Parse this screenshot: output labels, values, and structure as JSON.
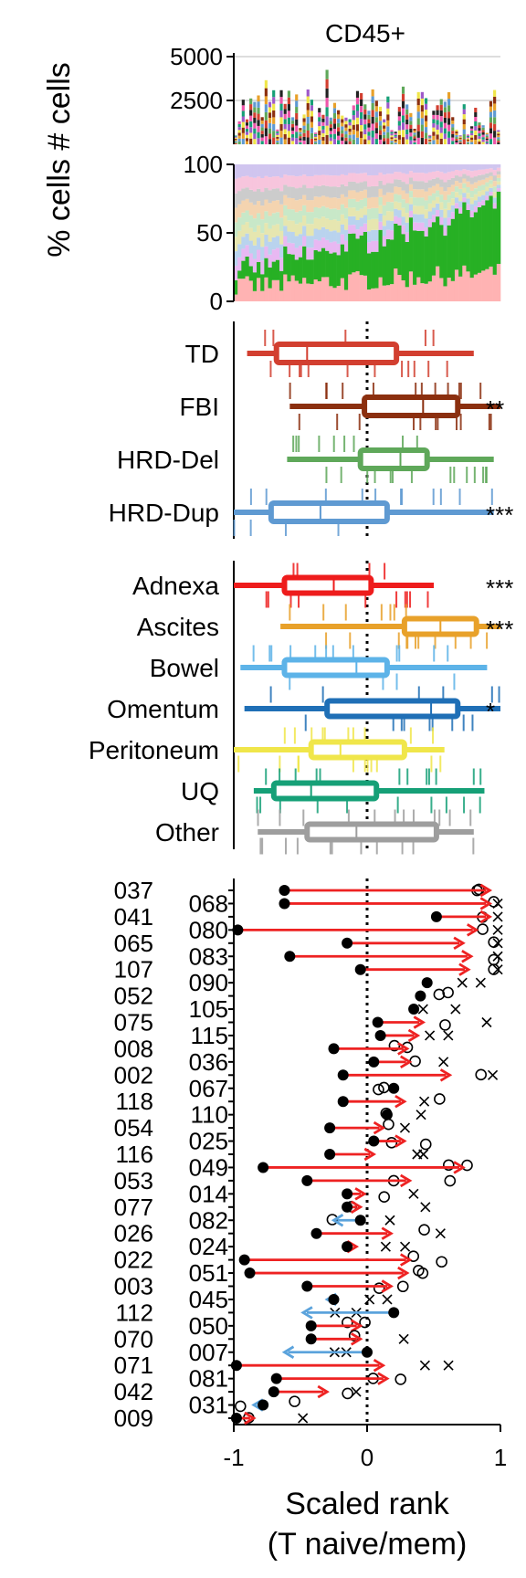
{
  "chart_data": {
    "type": "composite",
    "title": "CD45+",
    "ylabel_shared": "% cells # cells",
    "xlabel": "Scaled rank",
    "xlabel_sub": "(T naive/mem)",
    "x_ticks": [
      "-1",
      "0",
      "1"
    ],
    "xlim": [
      -1,
      1
    ],
    "counts_panel": {
      "type": "bar",
      "ylim": [
        0,
        5000
      ],
      "y_ticks": [
        "5000",
        "2500"
      ],
      "n_samples": 70
    },
    "percent_panel": {
      "type": "area",
      "ylim": [
        0,
        100
      ],
      "y_ticks": [
        "100",
        "50",
        "0"
      ],
      "n_samples": 70
    },
    "signature_panel": {
      "type": "box",
      "groups": [
        {
          "name": "TD",
          "color": "#d23f30",
          "whisker": [
            -0.9,
            0.8
          ],
          "q1": -0.68,
          "median": -0.45,
          "q3": 0.22,
          "sig": ""
        },
        {
          "name": "FBI",
          "color": "#8b2f0f",
          "whisker": [
            -0.58,
            1.0
          ],
          "q1": -0.02,
          "median": 0.42,
          "q3": 0.68,
          "sig": "**"
        },
        {
          "name": "HRD-Del",
          "color": "#5fa85a",
          "whisker": [
            -0.6,
            0.95
          ],
          "q1": -0.05,
          "median": 0.25,
          "q3": 0.45,
          "sig": ""
        },
        {
          "name": "HRD-Dup",
          "color": "#5f9ad2",
          "whisker": [
            -1.0,
            0.95
          ],
          "q1": -0.72,
          "median": -0.35,
          "q3": 0.15,
          "sig": "***"
        }
      ]
    },
    "site_panel": {
      "type": "box",
      "groups": [
        {
          "name": "Adnexa",
          "color": "#ee1c1c",
          "whisker": [
            -1.0,
            0.5
          ],
          "q1": -0.62,
          "median": -0.25,
          "q3": 0.03,
          "sig": "***"
        },
        {
          "name": "Ascites",
          "color": "#e8a12a",
          "whisker": [
            -0.65,
            1.0
          ],
          "q1": 0.28,
          "median": 0.55,
          "q3": 0.82,
          "sig": "***"
        },
        {
          "name": "Bowel",
          "color": "#5db3e8",
          "whisker": [
            -0.95,
            0.9
          ],
          "q1": -0.62,
          "median": -0.08,
          "q3": 0.15,
          "sig": ""
        },
        {
          "name": "Omentum",
          "color": "#1f6fb6",
          "whisker": [
            -0.92,
            1.0
          ],
          "q1": -0.3,
          "median": 0.48,
          "q3": 0.68,
          "sig": "*"
        },
        {
          "name": "Peritoneum",
          "color": "#f0e64a",
          "whisker": [
            -1.0,
            0.58
          ],
          "q1": -0.42,
          "median": -0.2,
          "q3": 0.28,
          "sig": ""
        },
        {
          "name": "UQ",
          "color": "#16a077",
          "whisker": [
            -0.85,
            0.88
          ],
          "q1": -0.7,
          "median": -0.42,
          "q3": 0.07,
          "sig": ""
        },
        {
          "name": "Other",
          "color": "#9e9e9e",
          "whisker": [
            -0.82,
            0.8
          ],
          "q1": -0.45,
          "median": -0.08,
          "q3": 0.52,
          "sig": ""
        }
      ]
    },
    "patient_panel": {
      "type": "dot-arrow",
      "patients": [
        {
          "id": "037",
          "start": -0.62,
          "end": 0.92
        },
        {
          "id": "068",
          "start": -0.62,
          "end": 0.92
        },
        {
          "id": "041",
          "start": 0.52,
          "end": 0.92
        },
        {
          "id": "080",
          "start": -0.97,
          "end": 0.82
        },
        {
          "id": "065",
          "start": -0.15,
          "end": 0.72
        },
        {
          "id": "083",
          "start": -0.58,
          "end": 0.78
        },
        {
          "id": "107",
          "start": -0.05,
          "end": 0.76
        },
        {
          "id": "090",
          "start": 0.45,
          "end": 0.45
        },
        {
          "id": "052",
          "start": 0.4,
          "end": 0.4
        },
        {
          "id": "105",
          "start": 0.35,
          "end": 0.35
        },
        {
          "id": "075",
          "start": 0.08,
          "end": 0.42
        },
        {
          "id": "115",
          "start": 0.1,
          "end": 0.38
        },
        {
          "id": "008",
          "start": -0.25,
          "end": 0.3
        },
        {
          "id": "036",
          "start": 0.05,
          "end": 0.32
        },
        {
          "id": "002",
          "start": -0.18,
          "end": 0.62
        },
        {
          "id": "067",
          "start": 0.2,
          "end": 0.2
        },
        {
          "id": "118",
          "start": -0.18,
          "end": 0.28
        },
        {
          "id": "110",
          "start": 0.15,
          "end": 0.15
        },
        {
          "id": "054",
          "start": -0.28,
          "end": 0.12
        },
        {
          "id": "025",
          "start": 0.05,
          "end": 0.28
        },
        {
          "id": "116",
          "start": -0.28,
          "end": 0.05
        },
        {
          "id": "049",
          "start": -0.78,
          "end": 0.72
        },
        {
          "id": "053",
          "start": -0.45,
          "end": 0.32
        },
        {
          "id": "014",
          "start": -0.15,
          "end": -0.02
        },
        {
          "id": "077",
          "start": -0.15,
          "end": -0.05
        },
        {
          "id": "082",
          "start": -0.05,
          "end": -0.25
        },
        {
          "id": "026",
          "start": -0.38,
          "end": 0.18
        },
        {
          "id": "024",
          "start": -0.15,
          "end": -0.08
        },
        {
          "id": "022",
          "start": -0.92,
          "end": 0.32
        },
        {
          "id": "051",
          "start": -0.88,
          "end": 0.3
        },
        {
          "id": "003",
          "start": -0.45,
          "end": 0.18
        },
        {
          "id": "045",
          "start": -0.25,
          "end": -0.3
        },
        {
          "id": "112",
          "start": 0.2,
          "end": -0.48
        },
        {
          "id": "050",
          "start": -0.42,
          "end": -0.05
        },
        {
          "id": "070",
          "start": -0.42,
          "end": -0.05
        },
        {
          "id": "007",
          "start": 0.0,
          "end": -0.62
        },
        {
          "id": "071",
          "start": -0.98,
          "end": 0.12
        },
        {
          "id": "081",
          "start": -0.68,
          "end": 0.15
        },
        {
          "id": "042",
          "start": -0.7,
          "end": -0.3
        },
        {
          "id": "031",
          "start": -0.78,
          "end": -0.85
        },
        {
          "id": "009",
          "start": -0.98,
          "end": -0.85
        }
      ]
    }
  },
  "colors": {
    "increase": "#ee2222",
    "decrease": "#5ba3dc",
    "zero_line": "#000000"
  }
}
